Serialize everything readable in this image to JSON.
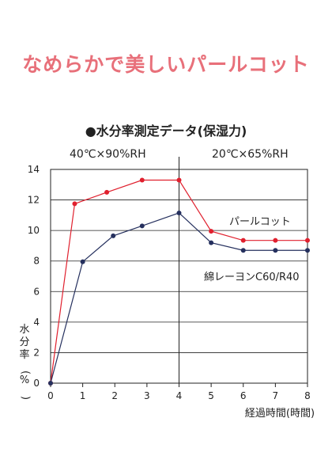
{
  "title": "なめらかで美しいパールコット",
  "title_color": "#e8707a",
  "chart_data": {
    "type": "line",
    "title": "●水分率測定データ(保湿力)",
    "conditions": [
      "40℃×90%RH",
      "20℃×65%RH"
    ],
    "xlabel": "経過時間(時間)",
    "ylabel": "水分率(%)",
    "xlim": [
      0,
      8
    ],
    "ylim": [
      0,
      14
    ],
    "xticks": [
      0,
      1,
      2,
      3,
      4,
      5,
      6,
      7,
      8
    ],
    "yticks": [
      0,
      2,
      4,
      6,
      8,
      10,
      12,
      14
    ],
    "grid": "horizontal",
    "series": [
      {
        "name": "パールコット",
        "color": "#e0202e",
        "x": [
          0,
          0.75,
          1.75,
          2.85,
          4,
          5,
          6,
          7,
          8
        ],
        "y": [
          0,
          11.75,
          12.5,
          13.3,
          13.3,
          9.95,
          9.35,
          9.35,
          9.35
        ]
      },
      {
        "name": "綿レーヨンC60/R40",
        "color": "#25305e",
        "x": [
          0,
          1,
          1.95,
          2.85,
          4,
          5,
          6,
          7,
          8
        ],
        "y": [
          0,
          7.95,
          9.65,
          10.3,
          11.15,
          9.2,
          8.7,
          8.7,
          8.7
        ]
      }
    ]
  }
}
